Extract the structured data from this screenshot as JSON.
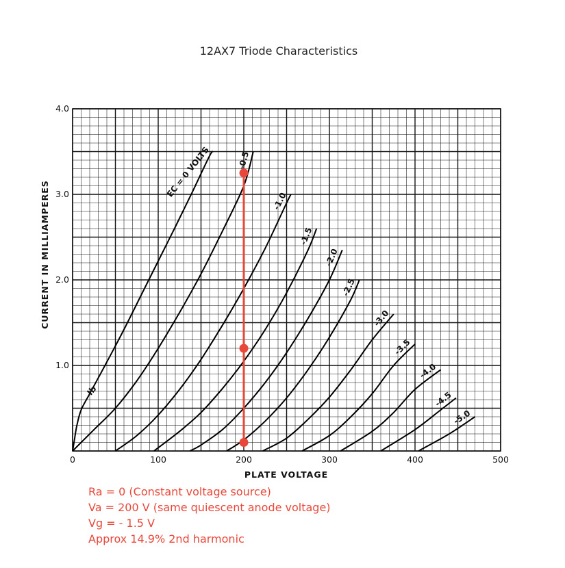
{
  "title": "12AX7 Triode Characteristics",
  "chart_data": {
    "type": "line",
    "xlabel": "PLATE VOLTAGE",
    "ylabel": "CURRENT IN MILLIAMPERES",
    "xlim": [
      0,
      500
    ],
    "ylim": [
      0,
      4.0
    ],
    "x_ticks": [
      "0",
      "100",
      "200",
      "300",
      "400",
      "500"
    ],
    "y_ticks": [
      "1.0",
      "2.0",
      "3.0",
      "4.0"
    ],
    "grid": true,
    "curve_label_text": "Ib",
    "series": [
      {
        "name": "EC = 0 VOLTS",
        "points": [
          [
            0,
            0
          ],
          [
            2,
            0.12
          ],
          [
            5,
            0.3
          ],
          [
            10,
            0.48
          ],
          [
            20,
            0.67
          ],
          [
            40,
            1.04
          ],
          [
            60,
            1.42
          ],
          [
            80,
            1.82
          ],
          [
            100,
            2.22
          ],
          [
            120,
            2.62
          ],
          [
            140,
            3.03
          ],
          [
            160,
            3.45
          ],
          [
            164,
            3.5
          ]
        ]
      },
      {
        "name": "-0.5",
        "points": [
          [
            0,
            0
          ],
          [
            10,
            0.1
          ],
          [
            25,
            0.25
          ],
          [
            50,
            0.5
          ],
          [
            75,
            0.82
          ],
          [
            100,
            1.2
          ],
          [
            125,
            1.62
          ],
          [
            150,
            2.07
          ],
          [
            175,
            2.57
          ],
          [
            200,
            3.1
          ],
          [
            211,
            3.5
          ]
        ]
      },
      {
        "name": "-1.0",
        "points": [
          [
            50,
            0
          ],
          [
            75,
            0.18
          ],
          [
            100,
            0.42
          ],
          [
            125,
            0.72
          ],
          [
            150,
            1.07
          ],
          [
            175,
            1.47
          ],
          [
            200,
            1.9
          ],
          [
            225,
            2.37
          ],
          [
            250,
            2.9
          ],
          [
            255,
            3.0
          ]
        ]
      },
      {
        "name": "-1.5",
        "points": [
          [
            95,
            0
          ],
          [
            125,
            0.23
          ],
          [
            150,
            0.45
          ],
          [
            175,
            0.73
          ],
          [
            200,
            1.05
          ],
          [
            225,
            1.42
          ],
          [
            250,
            1.85
          ],
          [
            275,
            2.35
          ],
          [
            285,
            2.6
          ]
        ]
      },
      {
        "name": "-2.0",
        "points": [
          [
            137,
            0
          ],
          [
            150,
            0.07
          ],
          [
            175,
            0.25
          ],
          [
            200,
            0.5
          ],
          [
            225,
            0.8
          ],
          [
            250,
            1.15
          ],
          [
            275,
            1.55
          ],
          [
            300,
            2.0
          ],
          [
            315,
            2.35
          ]
        ]
      },
      {
        "name": "-2.5",
        "points": [
          [
            180,
            0
          ],
          [
            200,
            0.13
          ],
          [
            225,
            0.35
          ],
          [
            250,
            0.62
          ],
          [
            275,
            0.95
          ],
          [
            300,
            1.33
          ],
          [
            325,
            1.77
          ],
          [
            335,
            2.0
          ]
        ]
      },
      {
        "name": "-3.0",
        "points": [
          [
            222,
            0
          ],
          [
            250,
            0.15
          ],
          [
            275,
            0.37
          ],
          [
            300,
            0.63
          ],
          [
            325,
            0.95
          ],
          [
            350,
            1.3
          ],
          [
            375,
            1.6
          ]
        ]
      },
      {
        "name": "-3.5",
        "points": [
          [
            268,
            0
          ],
          [
            300,
            0.18
          ],
          [
            325,
            0.4
          ],
          [
            350,
            0.67
          ],
          [
            375,
            1.0
          ],
          [
            400,
            1.25
          ]
        ]
      },
      {
        "name": "-4.0",
        "points": [
          [
            313,
            0
          ],
          [
            350,
            0.23
          ],
          [
            375,
            0.45
          ],
          [
            400,
            0.72
          ],
          [
            430,
            0.95
          ]
        ]
      },
      {
        "name": "-4.5",
        "points": [
          [
            360,
            0
          ],
          [
            400,
            0.25
          ],
          [
            430,
            0.48
          ],
          [
            448,
            0.62
          ]
        ]
      },
      {
        "name": "-5.0",
        "points": [
          [
            404,
            0
          ],
          [
            440,
            0.2
          ],
          [
            470,
            0.4
          ]
        ]
      }
    ],
    "load_line": {
      "x": 200,
      "y_range": [
        0.1,
        3.25
      ],
      "color": "#e8473a"
    },
    "markers": [
      {
        "x": 200,
        "y": 3.25,
        "color": "#e8473a"
      },
      {
        "x": 200,
        "y": 1.2,
        "color": "#e8473a"
      },
      {
        "x": 200,
        "y": 0.1,
        "color": "#e8473a"
      }
    ]
  },
  "notes": {
    "color": "#e8473a",
    "lines": [
      "Ra = 0 (Constant voltage source)",
      "Va = 200 V (same quiescent anode voltage)",
      "Vg = - 1.5 V",
      "Approx 14.9% 2nd harmonic"
    ]
  }
}
